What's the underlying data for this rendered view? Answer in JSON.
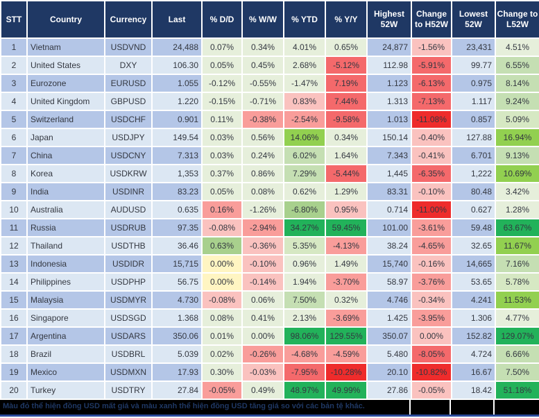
{
  "colors": {
    "header_bg": "#1F3864",
    "header_text": "#FFFFFF",
    "band_odd": "#B4C6E7",
    "band_even": "#DCE7F3",
    "body_text": "#333740",
    "grid": "#FFFFFF",
    "footer_bg": "#000000",
    "footer_text": "#1F3864",
    "footer_bottom_line": "#2B4B9B",
    "G1": "#E6EFDB",
    "G15": "#D6E8C3",
    "G2": "#C5DFB3",
    "G3": "#A8D08D",
    "G4": "#92D050",
    "G5": "#22B25A",
    "Y": "#FFF5C2",
    "R1": "#FAC2BF",
    "R2": "#F99D9A",
    "R3": "#F4696B",
    "R4": "#EE2C2C"
  },
  "table": {
    "headers": [
      "STT",
      "Country",
      "Currency",
      "Last",
      "% D/D",
      "% W/W",
      "% YTD",
      "% Y/Y",
      "Highest 52W",
      "Change to H52W",
      "Lowest 52W",
      "Change to L52W"
    ],
    "rows": [
      {
        "stt": "1",
        "country": "Vietnam",
        "currency": "USDVND",
        "last": "24,488",
        "dd": {
          "v": "0.07%",
          "c": "G1"
        },
        "ww": {
          "v": "0.34%",
          "c": "G1"
        },
        "ytd": {
          "v": "4.01%",
          "c": "G1"
        },
        "yy": {
          "v": "0.65%",
          "c": "G1"
        },
        "high": "24,877",
        "chg_h": {
          "v": "-1.56%",
          "c": "R1"
        },
        "low": "23,431",
        "chg_l": {
          "v": "4.51%",
          "c": "G1"
        }
      },
      {
        "stt": "2",
        "country": "United States",
        "currency": "DXY",
        "last": "106.30",
        "dd": {
          "v": "0.05%",
          "c": "G1"
        },
        "ww": {
          "v": "0.45%",
          "c": "G1"
        },
        "ytd": {
          "v": "2.68%",
          "c": "G1"
        },
        "yy": {
          "v": "-5.12%",
          "c": "R3"
        },
        "high": "112.98",
        "chg_h": {
          "v": "-5.91%",
          "c": "R3"
        },
        "low": "99.77",
        "chg_l": {
          "v": "6.55%",
          "c": "G2"
        }
      },
      {
        "stt": "3",
        "country": "Eurozone",
        "currency": "EURUSD",
        "last": "1.055",
        "dd": {
          "v": "-0.12%",
          "c": "G1"
        },
        "ww": {
          "v": "-0.55%",
          "c": "G1"
        },
        "ytd": {
          "v": "-1.47%",
          "c": "G1"
        },
        "yy": {
          "v": "7.19%",
          "c": "R3"
        },
        "high": "1.123",
        "chg_h": {
          "v": "-6.13%",
          "c": "R3"
        },
        "low": "0.975",
        "chg_l": {
          "v": "8.14%",
          "c": "G2"
        }
      },
      {
        "stt": "4",
        "country": "United Kingdom",
        "currency": "GBPUSD",
        "last": "1.220",
        "dd": {
          "v": "-0.15%",
          "c": "G1"
        },
        "ww": {
          "v": "-0.71%",
          "c": "G1"
        },
        "ytd": {
          "v": "0.83%",
          "c": "R1"
        },
        "yy": {
          "v": "7.44%",
          "c": "R3"
        },
        "high": "1.313",
        "chg_h": {
          "v": "-7.13%",
          "c": "R3"
        },
        "low": "1.117",
        "chg_l": {
          "v": "9.24%",
          "c": "G2"
        }
      },
      {
        "stt": "5",
        "country": "Switzerland",
        "currency": "USDCHF",
        "last": "0.901",
        "dd": {
          "v": "0.11%",
          "c": "G1"
        },
        "ww": {
          "v": "-0.38%",
          "c": "R2"
        },
        "ytd": {
          "v": "-2.54%",
          "c": "R2"
        },
        "yy": {
          "v": "-9.58%",
          "c": "R3"
        },
        "high": "1.013",
        "chg_h": {
          "v": "-11.08%",
          "c": "R4"
        },
        "low": "0.857",
        "chg_l": {
          "v": "5.09%",
          "c": "G15"
        }
      },
      {
        "stt": "6",
        "country": "Japan",
        "currency": "USDJPY",
        "last": "149.54",
        "dd": {
          "v": "0.03%",
          "c": "G1"
        },
        "ww": {
          "v": "0.56%",
          "c": "G1"
        },
        "ytd": {
          "v": "14.06%",
          "c": "G4"
        },
        "yy": {
          "v": "0.34%",
          "c": "G1"
        },
        "high": "150.14",
        "chg_h": {
          "v": "-0.40%",
          "c": "R1"
        },
        "low": "127.88",
        "chg_l": {
          "v": "16.94%",
          "c": "G4"
        }
      },
      {
        "stt": "7",
        "country": "China",
        "currency": "USDCNY",
        "last": "7.313",
        "dd": {
          "v": "0.03%",
          "c": "G1"
        },
        "ww": {
          "v": "0.24%",
          "c": "G1"
        },
        "ytd": {
          "v": "6.02%",
          "c": "G2"
        },
        "yy": {
          "v": "1.64%",
          "c": "G1"
        },
        "high": "7.343",
        "chg_h": {
          "v": "-0.41%",
          "c": "R1"
        },
        "low": "6.701",
        "chg_l": {
          "v": "9.13%",
          "c": "G2"
        }
      },
      {
        "stt": "8",
        "country": "Korea",
        "currency": "USDKRW",
        "last": "1,353",
        "dd": {
          "v": "0.37%",
          "c": "G1"
        },
        "ww": {
          "v": "0.86%",
          "c": "G1"
        },
        "ytd": {
          "v": "7.29%",
          "c": "G2"
        },
        "yy": {
          "v": "-5.44%",
          "c": "R3"
        },
        "high": "1,445",
        "chg_h": {
          "v": "-6.35%",
          "c": "R3"
        },
        "low": "1,222",
        "chg_l": {
          "v": "10.69%",
          "c": "G4"
        }
      },
      {
        "stt": "9",
        "country": "India",
        "currency": "USDINR",
        "last": "83.23",
        "dd": {
          "v": "0.05%",
          "c": "G1"
        },
        "ww": {
          "v": "0.08%",
          "c": "G1"
        },
        "ytd": {
          "v": "0.62%",
          "c": "G1"
        },
        "yy": {
          "v": "1.29%",
          "c": "G1"
        },
        "high": "83.31",
        "chg_h": {
          "v": "-0.10%",
          "c": "R1"
        },
        "low": "80.48",
        "chg_l": {
          "v": "3.42%",
          "c": "G1"
        }
      },
      {
        "stt": "10",
        "country": "Australia",
        "currency": "AUDUSD",
        "last": "0.635",
        "dd": {
          "v": "0.16%",
          "c": "R2"
        },
        "ww": {
          "v": "-1.26%",
          "c": "G1"
        },
        "ytd": {
          "v": "-6.80%",
          "c": "G3"
        },
        "yy": {
          "v": "0.95%",
          "c": "R1"
        },
        "high": "0.714",
        "chg_h": {
          "v": "-11.00%",
          "c": "R4"
        },
        "low": "0.627",
        "chg_l": {
          "v": "1.28%",
          "c": "G1"
        }
      },
      {
        "stt": "11",
        "country": "Russia",
        "currency": "USDRUB",
        "last": "97.35",
        "dd": {
          "v": "-0.08%",
          "c": "R1"
        },
        "ww": {
          "v": "-2.94%",
          "c": "R2"
        },
        "ytd": {
          "v": "34.27%",
          "c": "G5"
        },
        "yy": {
          "v": "59.45%",
          "c": "G5"
        },
        "high": "101.00",
        "chg_h": {
          "v": "-3.61%",
          "c": "R2"
        },
        "low": "59.48",
        "chg_l": {
          "v": "63.67%",
          "c": "G5"
        }
      },
      {
        "stt": "12",
        "country": "Thailand",
        "currency": "USDTHB",
        "last": "36.46",
        "dd": {
          "v": "0.63%",
          "c": "G3"
        },
        "ww": {
          "v": "-0.36%",
          "c": "R1"
        },
        "ytd": {
          "v": "5.35%",
          "c": "G15"
        },
        "yy": {
          "v": "-4.13%",
          "c": "R2"
        },
        "high": "38.24",
        "chg_h": {
          "v": "-4.65%",
          "c": "R2"
        },
        "low": "32.65",
        "chg_l": {
          "v": "11.67%",
          "c": "G4"
        }
      },
      {
        "stt": "13",
        "country": "Indonesia",
        "currency": "USDIDR",
        "last": "15,715",
        "dd": {
          "v": "0.00%",
          "c": "Y"
        },
        "ww": {
          "v": "-0.10%",
          "c": "R1"
        },
        "ytd": {
          "v": "0.96%",
          "c": "G1"
        },
        "yy": {
          "v": "1.49%",
          "c": "G1"
        },
        "high": "15,740",
        "chg_h": {
          "v": "-0.16%",
          "c": "R1"
        },
        "low": "14,665",
        "chg_l": {
          "v": "7.16%",
          "c": "G2"
        }
      },
      {
        "stt": "14",
        "country": "Philippines",
        "currency": "USDPHP",
        "last": "56.75",
        "dd": {
          "v": "0.00%",
          "c": "Y"
        },
        "ww": {
          "v": "-0.14%",
          "c": "R1"
        },
        "ytd": {
          "v": "1.94%",
          "c": "G1"
        },
        "yy": {
          "v": "-3.70%",
          "c": "R2"
        },
        "high": "58.97",
        "chg_h": {
          "v": "-3.76%",
          "c": "R2"
        },
        "low": "53.65",
        "chg_l": {
          "v": "5.78%",
          "c": "G15"
        }
      },
      {
        "stt": "15",
        "country": "Malaysia",
        "currency": "USDMYR",
        "last": "4.730",
        "dd": {
          "v": "-0.08%",
          "c": "R1"
        },
        "ww": {
          "v": "0.06%",
          "c": "G1"
        },
        "ytd": {
          "v": "7.50%",
          "c": "G2"
        },
        "yy": {
          "v": "0.32%",
          "c": "G1"
        },
        "high": "4.746",
        "chg_h": {
          "v": "-0.34%",
          "c": "R1"
        },
        "low": "4.241",
        "chg_l": {
          "v": "11.53%",
          "c": "G4"
        }
      },
      {
        "stt": "16",
        "country": "Singapore",
        "currency": "USDSGD",
        "last": "1.368",
        "dd": {
          "v": "0.08%",
          "c": "G1"
        },
        "ww": {
          "v": "0.41%",
          "c": "G1"
        },
        "ytd": {
          "v": "2.13%",
          "c": "G1"
        },
        "yy": {
          "v": "-3.69%",
          "c": "R2"
        },
        "high": "1.425",
        "chg_h": {
          "v": "-3.95%",
          "c": "R2"
        },
        "low": "1.306",
        "chg_l": {
          "v": "4.77%",
          "c": "G1"
        }
      },
      {
        "stt": "17",
        "country": "Argentina",
        "currency": "USDARS",
        "last": "350.06",
        "dd": {
          "v": "0.01%",
          "c": "G1"
        },
        "ww": {
          "v": "0.00%",
          "c": "G1"
        },
        "ytd": {
          "v": "98.06%",
          "c": "G5"
        },
        "yy": {
          "v": "129.55%",
          "c": "G5"
        },
        "high": "350.07",
        "chg_h": {
          "v": "0.00%",
          "c": "R1"
        },
        "low": "152.82",
        "chg_l": {
          "v": "129.07%",
          "c": "G5"
        }
      },
      {
        "stt": "18",
        "country": "Brazil",
        "currency": "USDBRL",
        "last": "5.039",
        "dd": {
          "v": "0.02%",
          "c": "G1"
        },
        "ww": {
          "v": "-0.26%",
          "c": "R2"
        },
        "ytd": {
          "v": "-4.68%",
          "c": "R2"
        },
        "yy": {
          "v": "-4.59%",
          "c": "R2"
        },
        "high": "5.480",
        "chg_h": {
          "v": "-8.05%",
          "c": "R3"
        },
        "low": "4.724",
        "chg_l": {
          "v": "6.66%",
          "c": "G2"
        }
      },
      {
        "stt": "19",
        "country": "Mexico",
        "currency": "USDMXN",
        "last": "17.93",
        "dd": {
          "v": "0.30%",
          "c": "G1"
        },
        "ww": {
          "v": "-0.03%",
          "c": "R1"
        },
        "ytd": {
          "v": "-7.95%",
          "c": "R3"
        },
        "yy": {
          "v": "-10.28%",
          "c": "R4"
        },
        "high": "20.10",
        "chg_h": {
          "v": "-10.82%",
          "c": "R4"
        },
        "low": "16.67",
        "chg_l": {
          "v": "7.50%",
          "c": "G2"
        }
      },
      {
        "stt": "20",
        "country": "Turkey",
        "currency": "USDTRY",
        "last": "27.84",
        "dd": {
          "v": "-0.05%",
          "c": "R2"
        },
        "ww": {
          "v": "0.49%",
          "c": "G1"
        },
        "ytd": {
          "v": "48.97%",
          "c": "G5"
        },
        "yy": {
          "v": "49.99%",
          "c": "G5"
        },
        "high": "27.86",
        "chg_h": {
          "v": "-0.05%",
          "c": "R1"
        },
        "low": "18.42",
        "chg_l": {
          "v": "51.18%",
          "c": "G5"
        }
      }
    ]
  },
  "footer": {
    "note": "Màu đỏ thể hiện đồng USD mất giá và màu xanh thể hiện đồng USD tăng giá so với các bản tệ khác."
  },
  "chart_data": {
    "type": "table",
    "title": "Currency heatmap vs USD (red = USD depreciation, green = USD appreciation)",
    "columns": [
      "STT",
      "Country",
      "Currency",
      "Last",
      "% D/D",
      "% W/W",
      "% YTD",
      "% Y/Y",
      "Highest 52W",
      "Change to H52W",
      "Lowest 52W",
      "Change to L52W"
    ],
    "rows": [
      [
        "1",
        "Vietnam",
        "USDVND",
        "24,488",
        "0.07%",
        "0.34%",
        "4.01%",
        "0.65%",
        "24,877",
        "-1.56%",
        "23,431",
        "4.51%"
      ],
      [
        "2",
        "United States",
        "DXY",
        "106.30",
        "0.05%",
        "0.45%",
        "2.68%",
        "-5.12%",
        "112.98",
        "-5.91%",
        "99.77",
        "6.55%"
      ],
      [
        "3",
        "Eurozone",
        "EURUSD",
        "1.055",
        "-0.12%",
        "-0.55%",
        "-1.47%",
        "7.19%",
        "1.123",
        "-6.13%",
        "0.975",
        "8.14%"
      ],
      [
        "4",
        "United Kingdom",
        "GBPUSD",
        "1.220",
        "-0.15%",
        "-0.71%",
        "0.83%",
        "7.44%",
        "1.313",
        "-7.13%",
        "1.117",
        "9.24%"
      ],
      [
        "5",
        "Switzerland",
        "USDCHF",
        "0.901",
        "0.11%",
        "-0.38%",
        "-2.54%",
        "-9.58%",
        "1.013",
        "-11.08%",
        "0.857",
        "5.09%"
      ],
      [
        "6",
        "Japan",
        "USDJPY",
        "149.54",
        "0.03%",
        "0.56%",
        "14.06%",
        "0.34%",
        "150.14",
        "-0.40%",
        "127.88",
        "16.94%"
      ],
      [
        "7",
        "China",
        "USDCNY",
        "7.313",
        "0.03%",
        "0.24%",
        "6.02%",
        "1.64%",
        "7.343",
        "-0.41%",
        "6.701",
        "9.13%"
      ],
      [
        "8",
        "Korea",
        "USDKRW",
        "1,353",
        "0.37%",
        "0.86%",
        "7.29%",
        "-5.44%",
        "1,445",
        "-6.35%",
        "1,222",
        "10.69%"
      ],
      [
        "9",
        "India",
        "USDINR",
        "83.23",
        "0.05%",
        "0.08%",
        "0.62%",
        "1.29%",
        "83.31",
        "-0.10%",
        "80.48",
        "3.42%"
      ],
      [
        "10",
        "Australia",
        "AUDUSD",
        "0.635",
        "0.16%",
        "-1.26%",
        "-6.80%",
        "0.95%",
        "0.714",
        "-11.00%",
        "0.627",
        "1.28%"
      ],
      [
        "11",
        "Russia",
        "USDRUB",
        "97.35",
        "-0.08%",
        "-2.94%",
        "34.27%",
        "59.45%",
        "101.00",
        "-3.61%",
        "59.48",
        "63.67%"
      ],
      [
        "12",
        "Thailand",
        "USDTHB",
        "36.46",
        "0.63%",
        "-0.36%",
        "5.35%",
        "-4.13%",
        "38.24",
        "-4.65%",
        "32.65",
        "11.67%"
      ],
      [
        "13",
        "Indonesia",
        "USDIDR",
        "15,715",
        "0.00%",
        "-0.10%",
        "0.96%",
        "1.49%",
        "15,740",
        "-0.16%",
        "14,665",
        "7.16%"
      ],
      [
        "14",
        "Philippines",
        "USDPHP",
        "56.75",
        "0.00%",
        "-0.14%",
        "1.94%",
        "-3.70%",
        "58.97",
        "-3.76%",
        "53.65",
        "5.78%"
      ],
      [
        "15",
        "Malaysia",
        "USDMYR",
        "4.730",
        "-0.08%",
        "0.06%",
        "7.50%",
        "0.32%",
        "4.746",
        "-0.34%",
        "4.241",
        "11.53%"
      ],
      [
        "16",
        "Singapore",
        "USDSGD",
        "1.368",
        "0.08%",
        "0.41%",
        "2.13%",
        "-3.69%",
        "1.425",
        "-3.95%",
        "1.306",
        "4.77%"
      ],
      [
        "17",
        "Argentina",
        "USDARS",
        "350.06",
        "0.01%",
        "0.00%",
        "98.06%",
        "129.55%",
        "350.07",
        "0.00%",
        "152.82",
        "129.07%"
      ],
      [
        "18",
        "Brazil",
        "USDBRL",
        "5.039",
        "0.02%",
        "-0.26%",
        "-4.68%",
        "-4.59%",
        "5.480",
        "-8.05%",
        "4.724",
        "6.66%"
      ],
      [
        "19",
        "Mexico",
        "USDMXN",
        "17.93",
        "0.30%",
        "-0.03%",
        "-7.95%",
        "-10.28%",
        "20.10",
        "-10.82%",
        "16.67",
        "7.50%"
      ],
      [
        "20",
        "Turkey",
        "USDTRY",
        "27.84",
        "-0.05%",
        "0.49%",
        "48.97%",
        "49.99%",
        "27.86",
        "-0.05%",
        "18.42",
        "51.18%"
      ]
    ]
  }
}
